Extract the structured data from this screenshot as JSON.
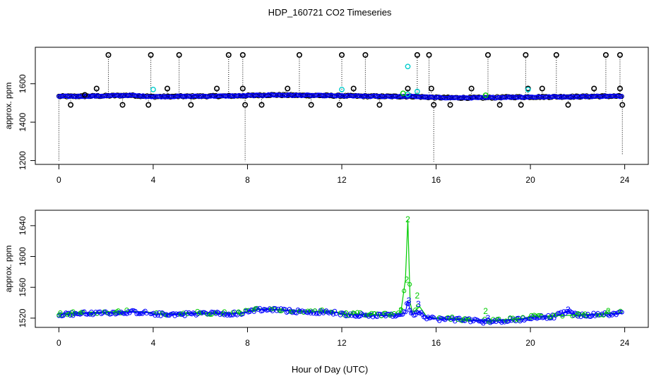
{
  "title": "HDP_160721  CO2 Timeseries",
  "xlabel": "Hour of Day (UTC)",
  "colors": {
    "black": "#000000",
    "blue": "#0000ff",
    "green": "#00cc00",
    "cyan": "#00cccc"
  },
  "chart_data": [
    {
      "type": "scatter",
      "ylabel": "approx. ppm",
      "xlim": [
        -1,
        25
      ],
      "ylim": [
        1180,
        1790
      ],
      "xticks": [
        0,
        4,
        8,
        12,
        16,
        20,
        24
      ],
      "yticks": [
        1200,
        1400,
        1600
      ],
      "baseline": {
        "x": [
          0,
          1,
          2,
          3,
          4,
          5,
          6,
          7,
          8,
          9,
          10,
          11,
          12,
          13,
          14,
          15,
          16,
          17,
          18,
          19,
          20,
          21,
          22,
          23,
          23.9
        ],
        "y": [
          1534,
          1535,
          1537,
          1540,
          1533,
          1534,
          1535,
          1536,
          1538,
          1542,
          1540,
          1539,
          1537,
          1535,
          1534,
          1534,
          1528,
          1527,
          1527,
          1530,
          1531,
          1532,
          1533,
          1535,
          1535
        ]
      },
      "outliers": {
        "x": [
          0.5,
          1.1,
          1.6,
          2.1,
          2.7,
          3.8,
          3.9,
          4.6,
          5.1,
          5.6,
          6.7,
          7.2,
          7.8,
          7.8,
          7.9,
          8.6,
          9.7,
          10.2,
          10.7,
          11.9,
          12.0,
          12.5,
          13.0,
          13.6,
          14.8,
          15.2,
          15.7,
          15.8,
          15.9,
          16.6,
          17.5,
          18.2,
          18.7,
          19.6,
          19.8,
          19.9,
          20.5,
          21.1,
          21.6,
          22.7,
          23.2,
          23.8,
          23.8,
          23.9
        ],
        "y": [
          1490,
          1542,
          1575,
          1750,
          1490,
          1490,
          1750,
          1575,
          1750,
          1490,
          1575,
          1750,
          1750,
          1575,
          1490,
          1490,
          1575,
          1750,
          1490,
          1490,
          1750,
          1575,
          1750,
          1490,
          1575,
          1750,
          1750,
          1575,
          1490,
          1490,
          1575,
          1750,
          1490,
          1490,
          1750,
          1575,
          1575,
          1750,
          1490,
          1575,
          1750,
          1750,
          1575,
          1490
        ]
      },
      "cyan_points": {
        "x": [
          4.0,
          12.0,
          14.8,
          14.8,
          15.2,
          19.9
        ],
        "y": [
          1570,
          1570,
          1690,
          1545,
          1560,
          1570
        ]
      },
      "green_points": {
        "x": [
          14.6,
          18.1
        ],
        "y": [
          1550,
          1540
        ]
      },
      "drops": {
        "x": [
          0,
          7.9,
          15.9,
          23.9
        ],
        "y": [
          1200,
          1195,
          1195,
          1230
        ]
      }
    },
    {
      "type": "line",
      "ylabel": "approx. ppm",
      "xlim": [
        -1,
        25
      ],
      "ylim": [
        1508,
        1660
      ],
      "xticks": [
        0,
        4,
        8,
        12,
        16,
        20,
        24
      ],
      "yticks": [
        1520,
        1560,
        1600,
        1640
      ],
      "series": [
        {
          "x": [
            0,
            1,
            2,
            3,
            3.8,
            4,
            5,
            6,
            7,
            7.8,
            8.4,
            9,
            10,
            11,
            11.8,
            12,
            13,
            14,
            14.5,
            14.7,
            14.8,
            14.9,
            15,
            15.3,
            15.6,
            16,
            17,
            18,
            19,
            19.8,
            20,
            21,
            22,
            23,
            23.9
          ],
          "y": [
            1526,
            1527,
            1528,
            1529,
            1528,
            1526,
            1526,
            1527,
            1527,
            1527,
            1532,
            1532,
            1530,
            1529,
            1528,
            1526,
            1525,
            1524,
            1527,
            1570,
            1648,
            1540,
            1527,
            1535,
            1522,
            1520,
            1519,
            1517,
            1518,
            1520,
            1522,
            1523,
            1524,
            1526,
            1527
          ]
        },
        {
          "x": [
            0,
            1,
            2,
            3,
            3.8,
            4,
            5,
            6,
            7,
            7.8,
            8.4,
            9,
            10,
            11,
            11.8,
            12,
            13,
            14,
            14.5,
            14.7,
            14.8,
            14.9,
            15,
            15.3,
            15.6,
            16,
            17,
            18,
            19,
            19.8,
            20,
            21,
            21.6,
            22,
            23,
            23.9
          ],
          "y": [
            1525,
            1526,
            1527,
            1528,
            1527,
            1525,
            1525,
            1526,
            1526,
            1526,
            1531,
            1531,
            1529,
            1528,
            1527,
            1525,
            1524,
            1523,
            1525,
            1527,
            1543,
            1530,
            1525,
            1528,
            1521,
            1519,
            1518,
            1516,
            1517,
            1519,
            1521,
            1522,
            1529,
            1523,
            1525,
            1526
          ]
        }
      ]
    }
  ]
}
